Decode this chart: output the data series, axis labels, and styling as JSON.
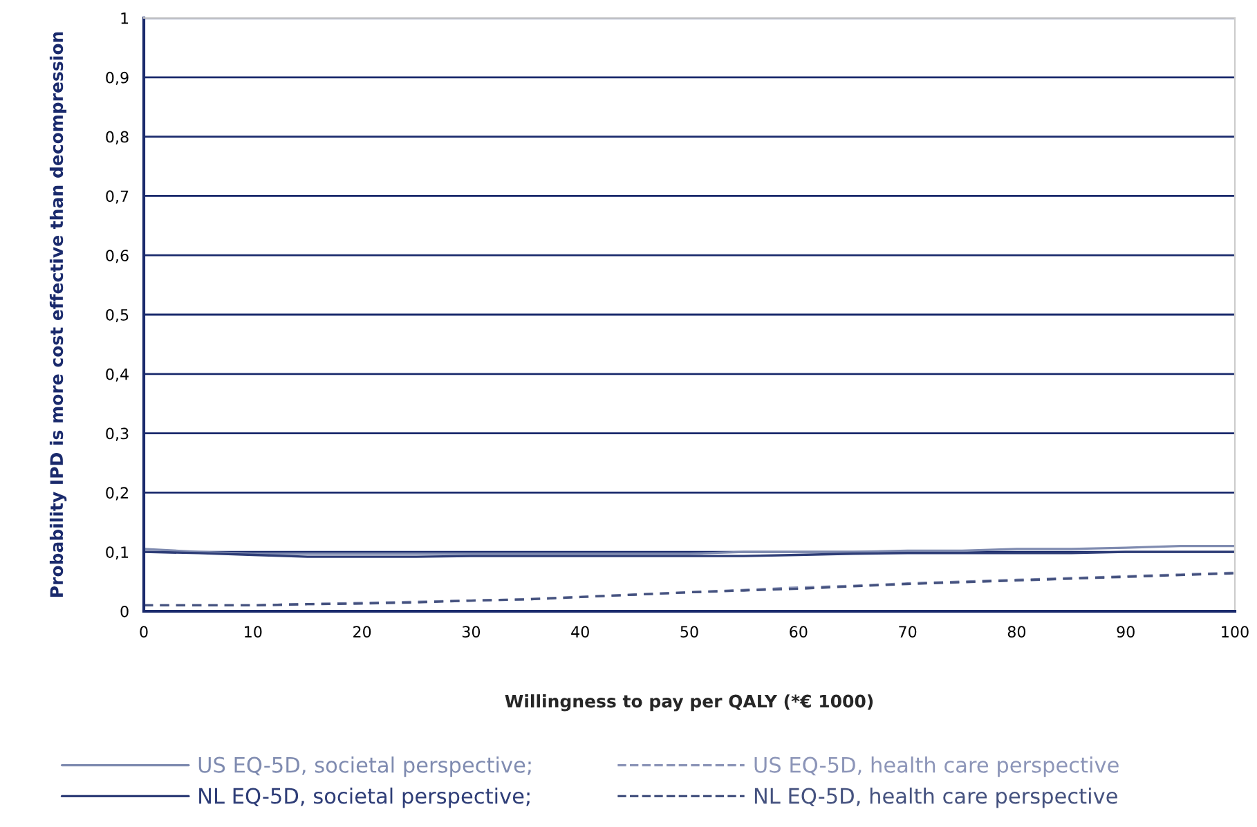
{
  "chart_data": {
    "type": "line",
    "xlabel": "Willingness to pay per QALY (*€ 1000)",
    "ylabel": "Probability IPD is more cost effective than decompression",
    "x": [
      0,
      5,
      10,
      15,
      20,
      25,
      30,
      35,
      40,
      45,
      50,
      55,
      60,
      65,
      70,
      75,
      80,
      85,
      90,
      95,
      100
    ],
    "series": [
      {
        "name": "US EQ-5D, societal perspective;",
        "color": "#7f8bb0",
        "line_style": "solid",
        "values": [
          0.105,
          0.1,
          0.097,
          0.097,
          0.097,
          0.097,
          0.097,
          0.097,
          0.097,
          0.097,
          0.097,
          0.1,
          0.1,
          0.1,
          0.102,
          0.102,
          0.105,
          0.105,
          0.107,
          0.11,
          0.11
        ]
      },
      {
        "name": "NL EQ-5D, societal perspective;",
        "color": "#2e3d77",
        "line_style": "solid",
        "values": [
          0.1,
          0.098,
          0.095,
          0.092,
          0.092,
          0.092,
          0.093,
          0.093,
          0.093,
          0.093,
          0.093,
          0.093,
          0.095,
          0.097,
          0.098,
          0.098,
          0.098,
          0.098,
          0.1,
          0.1,
          0.1
        ]
      },
      {
        "name": "US EQ-5D, health care perspective",
        "color": "#8c95b8",
        "line_style": "dashed",
        "values": [
          0.01,
          0.01,
          0.01,
          0.012,
          0.014,
          0.016,
          0.018,
          0.02,
          0.024,
          0.028,
          0.032,
          0.036,
          0.04,
          0.043,
          0.047,
          0.05,
          0.053,
          0.056,
          0.059,
          0.062,
          0.065
        ]
      },
      {
        "name": "NL EQ-5D, health care perspective",
        "color": "#45527f",
        "line_style": "dashed",
        "values": [
          0.01,
          0.01,
          0.01,
          0.012,
          0.013,
          0.015,
          0.018,
          0.02,
          0.024,
          0.028,
          0.032,
          0.035,
          0.038,
          0.042,
          0.046,
          0.049,
          0.052,
          0.055,
          0.058,
          0.061,
          0.064
        ]
      }
    ],
    "xlim": [
      0,
      100
    ],
    "xticks": [
      0,
      10,
      20,
      30,
      40,
      50,
      60,
      70,
      80,
      90,
      100
    ],
    "ylim": [
      0,
      1
    ],
    "yticks": [
      {
        "value": 0,
        "label": "0"
      },
      {
        "value": 0.1,
        "label": "0,1"
      },
      {
        "value": 0.2,
        "label": "0,2"
      },
      {
        "value": 0.3,
        "label": "0,3"
      },
      {
        "value": 0.4,
        "label": "0,4"
      },
      {
        "value": 0.5,
        "label": "0,5"
      },
      {
        "value": 0.6,
        "label": "0,6"
      },
      {
        "value": 0.7,
        "label": "0,7"
      },
      {
        "value": 0.8,
        "label": "0,8"
      },
      {
        "value": 0.9,
        "label": "0,9"
      },
      {
        "value": 1,
        "label": "1"
      }
    ],
    "grid": "y",
    "legend": "bottom",
    "marker": "none"
  }
}
